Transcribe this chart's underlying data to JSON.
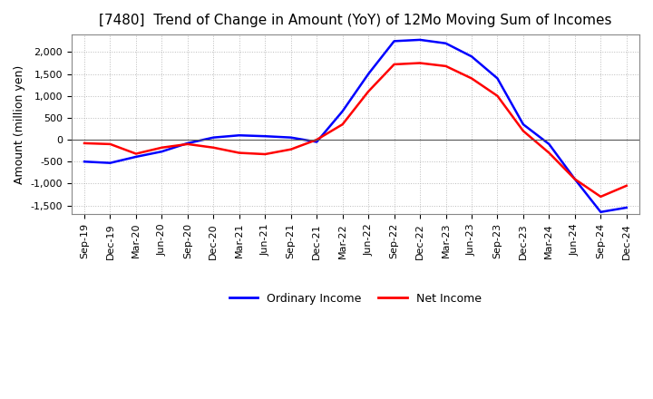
{
  "title": "[7480]  Trend of Change in Amount (YoY) of 12Mo Moving Sum of Incomes",
  "ylabel": "Amount (million yen)",
  "ylim": [
    -1700,
    2400
  ],
  "yticks": [
    -1500,
    -1000,
    -500,
    0,
    500,
    1000,
    1500,
    2000
  ],
  "x_labels": [
    "Sep-19",
    "Dec-19",
    "Mar-20",
    "Jun-20",
    "Sep-20",
    "Dec-20",
    "Mar-21",
    "Jun-21",
    "Sep-21",
    "Dec-21",
    "Mar-22",
    "Jun-22",
    "Sep-22",
    "Dec-22",
    "Mar-23",
    "Jun-23",
    "Sep-23",
    "Dec-23",
    "Mar-24",
    "Jun-24",
    "Sep-24",
    "Dec-24"
  ],
  "ordinary_income": [
    -500,
    -530,
    -390,
    -270,
    -80,
    50,
    100,
    80,
    50,
    -50,
    650,
    1500,
    2250,
    2280,
    2200,
    1900,
    1400,
    350,
    -100,
    -900,
    -1650,
    -1550
  ],
  "net_income": [
    -80,
    -100,
    -320,
    -180,
    -100,
    -180,
    -300,
    -330,
    -220,
    0,
    350,
    1100,
    1720,
    1750,
    1680,
    1400,
    1000,
    200,
    -300,
    -900,
    -1300,
    -1050
  ],
  "ordinary_color": "#0000ff",
  "net_color": "#ff0000",
  "grid_color": "#bbbbbb",
  "zero_line_color": "#555555",
  "background_color": "#ffffff",
  "title_fontsize": 11,
  "ylabel_fontsize": 9,
  "tick_fontsize": 8
}
